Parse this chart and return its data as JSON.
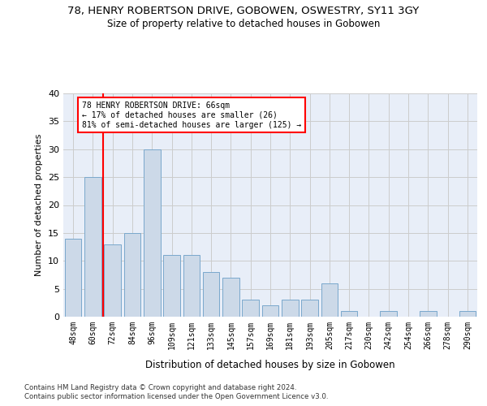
{
  "title": "78, HENRY ROBERTSON DRIVE, GOBOWEN, OSWESTRY, SY11 3GY",
  "subtitle": "Size of property relative to detached houses in Gobowen",
  "xlabel_bottom": "Distribution of detached houses by size in Gobowen",
  "ylabel": "Number of detached properties",
  "categories": [
    "48sqm",
    "60sqm",
    "72sqm",
    "84sqm",
    "96sqm",
    "109sqm",
    "121sqm",
    "133sqm",
    "145sqm",
    "157sqm",
    "169sqm",
    "181sqm",
    "193sqm",
    "205sqm",
    "217sqm",
    "230sqm",
    "242sqm",
    "254sqm",
    "266sqm",
    "278sqm",
    "290sqm"
  ],
  "values": [
    14,
    25,
    13,
    15,
    30,
    11,
    11,
    8,
    7,
    3,
    2,
    3,
    3,
    6,
    1,
    0,
    1,
    0,
    1,
    0,
    1
  ],
  "bar_color": "#ccd9e8",
  "bar_edgecolor": "#7aa8cc",
  "grid_color": "#cccccc",
  "background_color": "#e8eef8",
  "annotation_text": "78 HENRY ROBERTSON DRIVE: 66sqm\n← 17% of detached houses are smaller (26)\n81% of semi-detached houses are larger (125) →",
  "annotation_box_color": "white",
  "annotation_box_edgecolor": "red",
  "vline_x_index": 1.5,
  "vline_color": "red",
  "ylim": [
    0,
    40
  ],
  "yticks": [
    0,
    5,
    10,
    15,
    20,
    25,
    30,
    35,
    40
  ],
  "footer_line1": "Contains HM Land Registry data © Crown copyright and database right 2024.",
  "footer_line2": "Contains public sector information licensed under the Open Government Licence v3.0.",
  "title_fontsize": 9.5,
  "subtitle_fontsize": 8.5
}
